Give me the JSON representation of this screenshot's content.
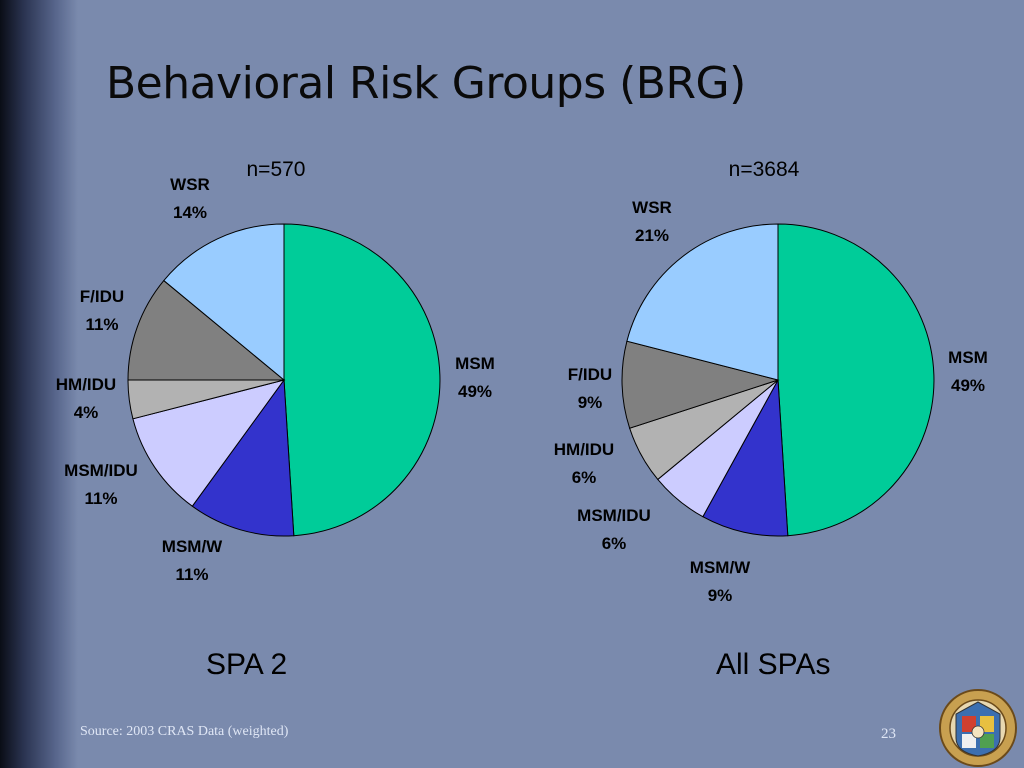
{
  "slide": {
    "title": "Behavioral Risk Groups (BRG)",
    "source": "Source: 2003 CRAS Data (weighted)",
    "page_number": "23",
    "seal_text": "COUNTY OF LOS ANGELES · CALIFORNIA"
  },
  "chart_data": [
    {
      "type": "pie",
      "title": "SPA 2",
      "subtitle": "n=570",
      "slices": [
        {
          "label": "MSM",
          "value": 49,
          "display": "49%",
          "color": "#00cc99"
        },
        {
          "label": "MSM/W",
          "value": 11,
          "display": "11%",
          "color": "#3333cc"
        },
        {
          "label": "MSM/IDU",
          "value": 11,
          "display": "11%",
          "color": "#ccccff"
        },
        {
          "label": "HM/IDU",
          "value": 4,
          "display": "4%",
          "color": "#b2b2b2"
        },
        {
          "label": "F/IDU",
          "value": 11,
          "display": "11%",
          "color": "#808080"
        },
        {
          "label": "WSR",
          "value": 14,
          "display": "14%",
          "color": "#99ccff"
        }
      ]
    },
    {
      "type": "pie",
      "title": "All SPAs",
      "subtitle": "n=3684",
      "slices": [
        {
          "label": "MSM",
          "value": 49,
          "display": "49%",
          "color": "#00cc99"
        },
        {
          "label": "MSM/W",
          "value": 9,
          "display": "9%",
          "color": "#3333cc"
        },
        {
          "label": "MSM/IDU",
          "value": 6,
          "display": "6%",
          "color": "#ccccff"
        },
        {
          "label": "HM/IDU",
          "value": 6,
          "display": "6%",
          "color": "#b2b2b2"
        },
        {
          "label": "F/IDU",
          "value": 9,
          "display": "9%",
          "color": "#808080"
        },
        {
          "label": "WSR",
          "value": 21,
          "display": "21%",
          "color": "#99ccff"
        }
      ]
    }
  ]
}
